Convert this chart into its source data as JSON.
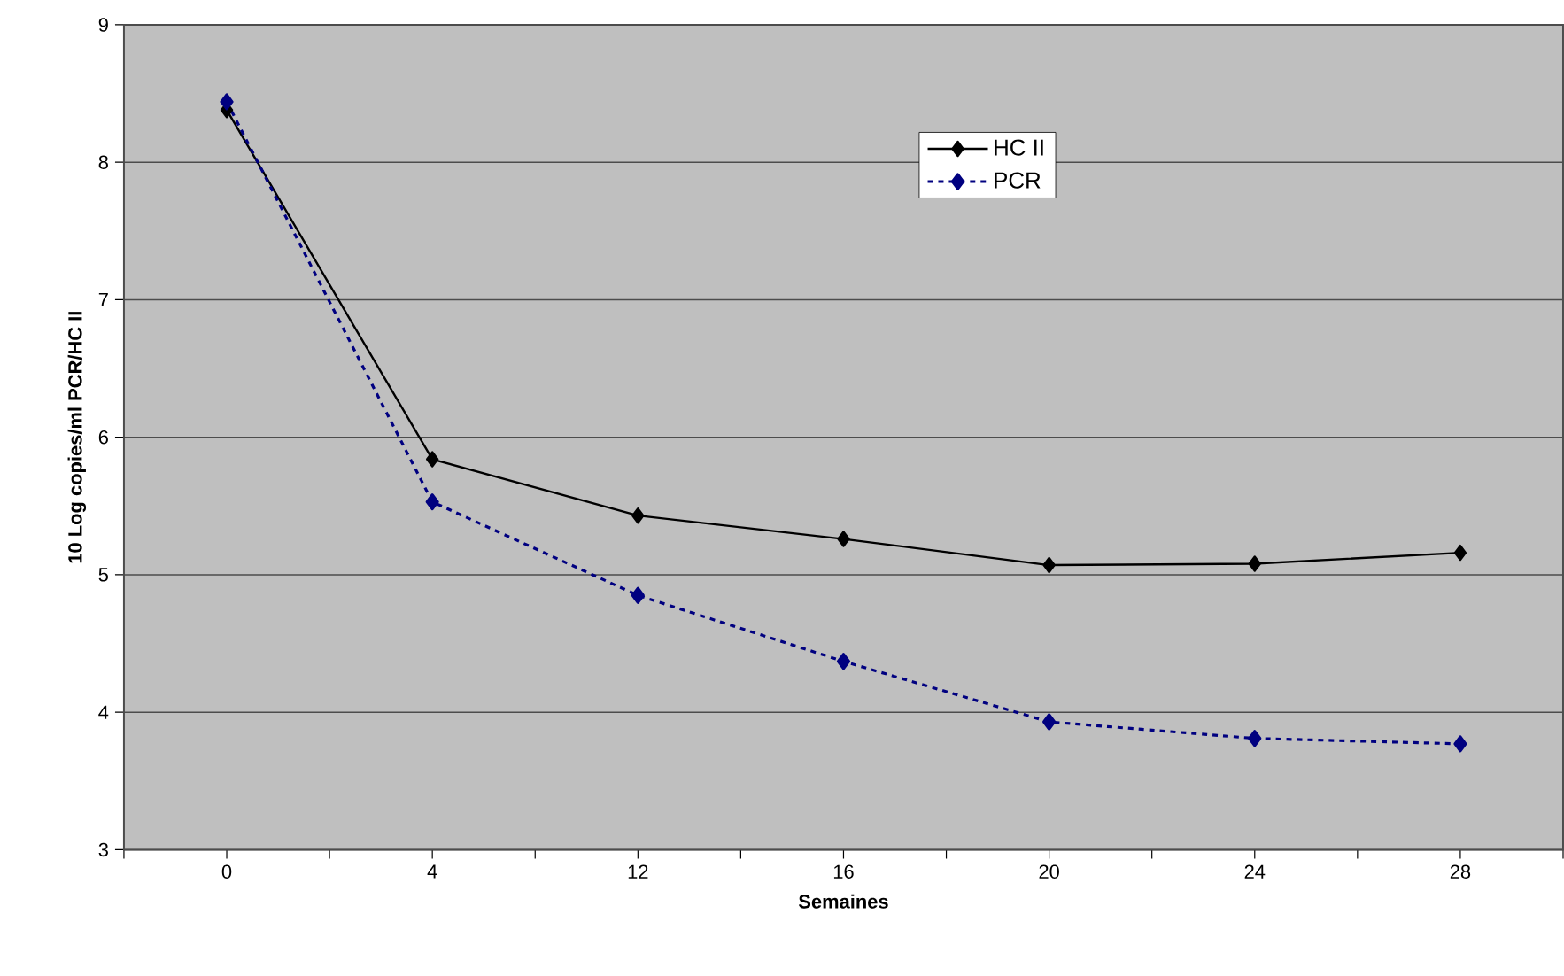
{
  "chart_data": {
    "type": "line",
    "xlabel": "Semaines",
    "ylabel": "10 Log  copies/ml PCR/HC II",
    "categories": [
      "0",
      "4",
      "12",
      "16",
      "20",
      "24",
      "28"
    ],
    "series": [
      {
        "name": "HC II",
        "color": "#000000",
        "line_style": "solid",
        "values": [
          8.38,
          5.84,
          5.43,
          5.26,
          5.07,
          5.08,
          5.16
        ]
      },
      {
        "name": "PCR",
        "color": "#000080",
        "line_style": "dashed",
        "values": [
          8.44,
          5.53,
          4.85,
          4.37,
          3.93,
          3.81,
          3.77
        ]
      }
    ],
    "ylim": [
      3,
      9
    ],
    "yticks": [
      3,
      4,
      5,
      6,
      7,
      8,
      9
    ],
    "grid": "y",
    "legend": "top",
    "marker": "diamond"
  }
}
